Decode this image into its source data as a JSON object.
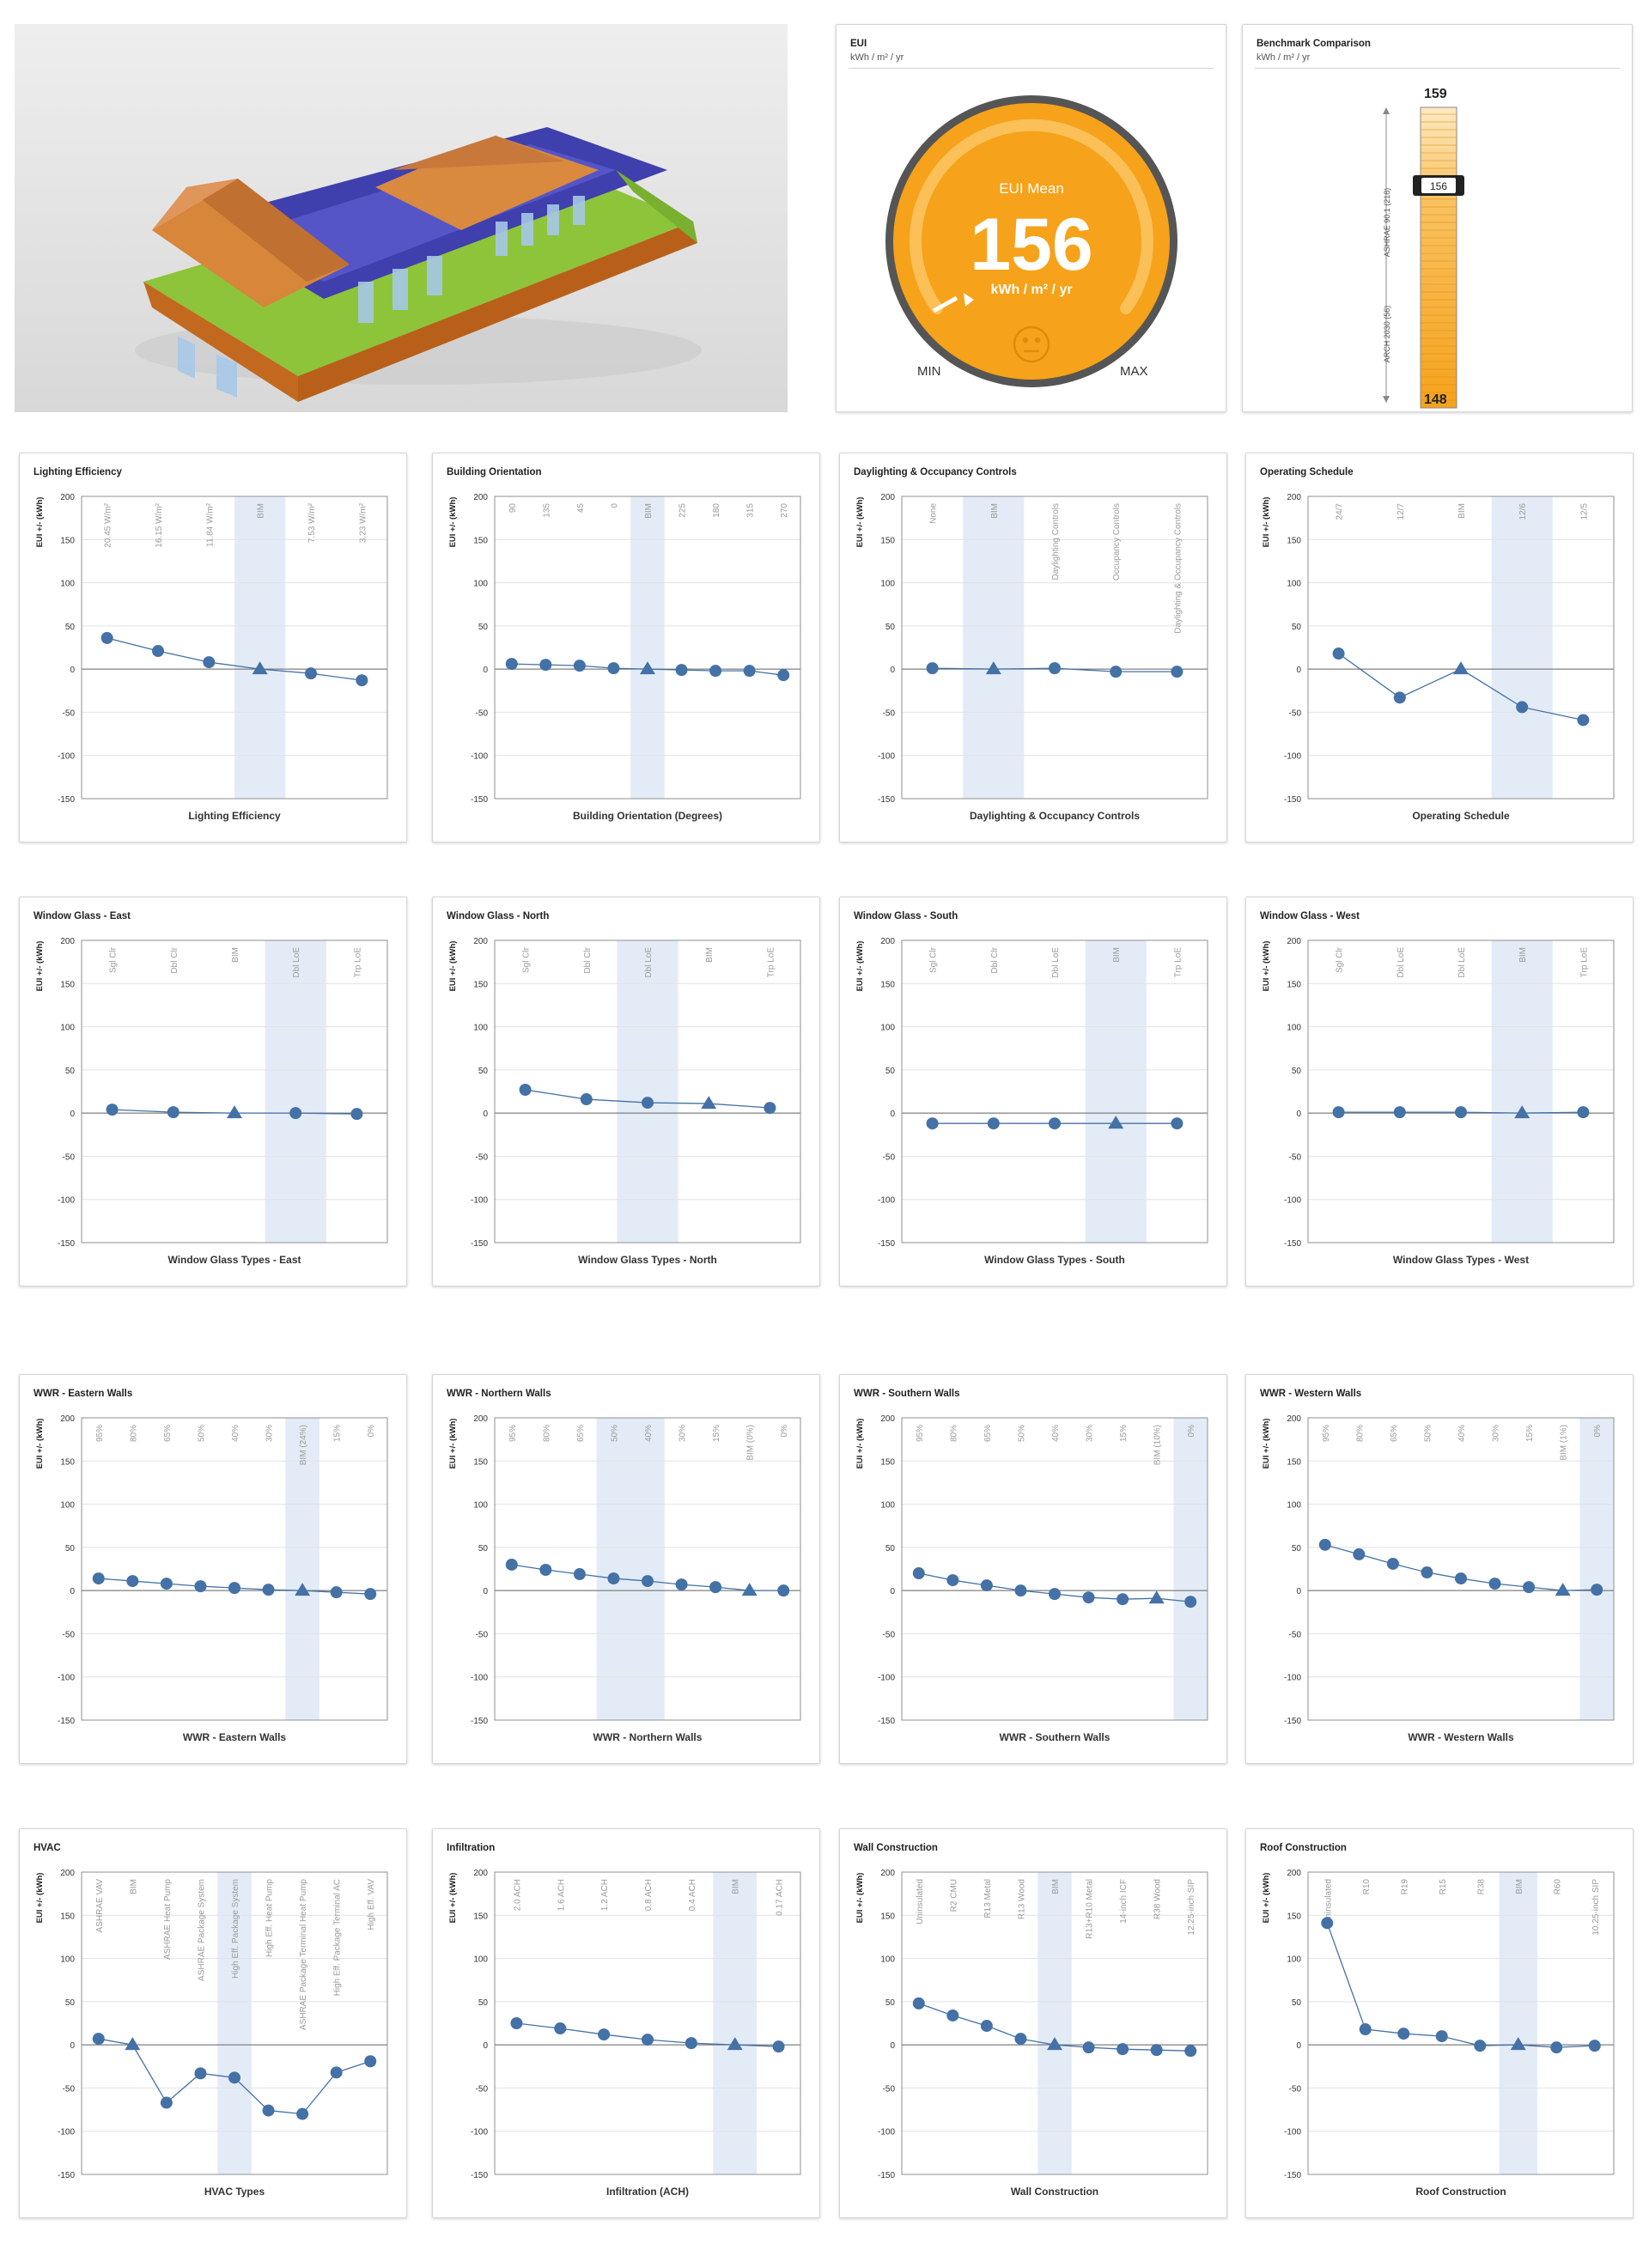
{
  "eui": {
    "title": "EUI",
    "units": "kWh / m² / yr",
    "gauge_label": "EUI Mean",
    "value": "156",
    "value_units": "kWh / m² / yr",
    "min_label": "MIN",
    "max_label": "MAX",
    "colors": {
      "accent": "#f6a21a",
      "ring": "#5f5f5f"
    }
  },
  "benchmark": {
    "title": "Benchmark Comparison",
    "units": "kWh / m² / yr",
    "top_value": "159",
    "bottom_value": "148",
    "marker_value": "156",
    "upper_label": "ASHRAE 90.1 (218)",
    "lower_label": "ARCH 2030 (56)",
    "colors": {
      "fill": "#f7a928",
      "light": "#fde7bb"
    }
  },
  "chart_data": [
    {
      "title": "Lighting Efficiency",
      "type": "line",
      "categories": [
        "20.45 W/m²",
        "16.15 W/m²",
        "11.84 W/m²",
        "BIM",
        "7.53 W/m²",
        "3.23 W/m²"
      ],
      "values": [
        36,
        21,
        8,
        0,
        -5,
        -13
      ],
      "bim": 3,
      "xlabel": "Lighting Efficiency",
      "ylabel": "EUI +/- (kWh)",
      "ylim": [
        -150,
        200
      ]
    },
    {
      "title": "Building Orientation",
      "type": "line",
      "categories": [
        "90",
        "135",
        "45",
        "0",
        "BIM",
        "225",
        "180",
        "315",
        "270"
      ],
      "values": [
        6,
        5,
        4,
        1,
        0,
        -1,
        -2,
        -2,
        -7
      ],
      "bim": 4,
      "xlabel": "Building Orientation (Degrees)",
      "ylabel": "EUI +/- (kWh)",
      "ylim": [
        -150,
        200
      ]
    },
    {
      "title": "Daylighting & Occupancy Controls",
      "type": "line",
      "categories": [
        "None",
        "BIM",
        "Daylighting Controls",
        "Occupancy Controls",
        "Daylighting & Occupancy Controls"
      ],
      "values": [
        1,
        0,
        1,
        -3,
        -3
      ],
      "bim": 1,
      "xlabel": "Daylighting & Occupancy Controls",
      "ylabel": "EUI +/- (kWh)",
      "ylim": [
        -150,
        200
      ]
    },
    {
      "title": "Operating Schedule",
      "type": "line",
      "categories": [
        "24/7",
        "12/7",
        "BIM",
        "12/6",
        "12/5"
      ],
      "values": [
        18,
        -33,
        0,
        -44,
        -59
      ],
      "bim": 2,
      "shade": 3,
      "xlabel": "Operating Schedule",
      "ylabel": "EUI +/- (kWh)",
      "ylim": [
        -150,
        200
      ]
    },
    {
      "title": "Window Glass - East",
      "type": "line",
      "categories": [
        "Sgl Clr",
        "Dbl Clr",
        "BIM",
        "Dbl LoE",
        "Trp LoE"
      ],
      "values": [
        4,
        1,
        0,
        0,
        -1
      ],
      "bim": 2,
      "shade": 3,
      "xlabel": "Window Glass Types - East",
      "ylabel": "EUI +/- (kWh)",
      "ylim": [
        -150,
        200
      ]
    },
    {
      "title": "Window Glass - North",
      "type": "line",
      "categories": [
        "Sgl Clr",
        "Dbl Clr",
        "Dbl LoE",
        "BIM",
        "Trp LoE"
      ],
      "values": [
        27,
        16,
        12,
        11,
        6
      ],
      "bim": 3,
      "shade": 2,
      "xlabel": "Window Glass Types - North",
      "ylabel": "EUI +/- (kWh)",
      "ylim": [
        -150,
        200
      ]
    },
    {
      "title": "Window Glass - South",
      "type": "line",
      "categories": [
        "Sgl Clr",
        "Dbl Clr",
        "Dbl LoE",
        "BIM",
        "Trp LoE"
      ],
      "values": [
        -12,
        -12,
        -12,
        -12,
        -12
      ],
      "bim": 3,
      "xlabel": "Window Glass Types - South",
      "ylabel": "EUI +/- (kWh)",
      "ylim": [
        -150,
        200
      ]
    },
    {
      "title": "Window Glass - West",
      "type": "line",
      "categories": [
        "Sgl Clr",
        "Dbl LoE",
        "Dbl LoE",
        "BIM",
        "Trp LoE"
      ],
      "values": [
        1,
        1,
        1,
        0,
        1
      ],
      "bim": 3,
      "xlabel": "Window Glass Types - West",
      "ylabel": "EUI +/- (kWh)",
      "ylim": [
        -150,
        200
      ]
    },
    {
      "title": "WWR - Eastern Walls",
      "type": "line",
      "categories": [
        "95%",
        "80%",
        "65%",
        "50%",
        "40%",
        "30%",
        "BIM (24%)",
        "15%",
        "0%"
      ],
      "values": [
        14,
        11,
        8,
        5,
        3,
        1,
        0,
        -2,
        -4
      ],
      "bim": 6,
      "xlabel": "WWR - Eastern Walls",
      "ylabel": "EUI +/- (kWh)",
      "ylim": [
        -150,
        200
      ]
    },
    {
      "title": "WWR - Northern Walls",
      "type": "line",
      "categories": [
        "95%",
        "80%",
        "65%",
        "50%",
        "40%",
        "30%",
        "15%",
        "BIM (0%)",
        "0%"
      ],
      "values": [
        30,
        24,
        19,
        14,
        11,
        7,
        4,
        0,
        0
      ],
      "bim": 7,
      "shade": [
        3,
        4
      ],
      "xlabel": "WWR - Northern Walls",
      "ylabel": "EUI +/- (kWh)",
      "ylim": [
        -150,
        200
      ]
    },
    {
      "title": "WWR - Southern Walls",
      "type": "line",
      "categories": [
        "95%",
        "80%",
        "65%",
        "50%",
        "40%",
        "30%",
        "15%",
        "BIM (10%)",
        "0%"
      ],
      "values": [
        20,
        12,
        6,
        0,
        -4,
        -8,
        -10,
        -9,
        -13
      ],
      "bim": 7,
      "shade": 8,
      "xlabel": "WWR - Southern Walls",
      "ylabel": "EUI +/- (kWh)",
      "ylim": [
        -150,
        200
      ]
    },
    {
      "title": "WWR - Western Walls",
      "type": "line",
      "categories": [
        "95%",
        "80%",
        "65%",
        "50%",
        "40%",
        "30%",
        "15%",
        "BIM (1%)",
        "0%"
      ],
      "values": [
        53,
        42,
        31,
        21,
        14,
        8,
        4,
        0,
        1
      ],
      "bim": 7,
      "shade": 8,
      "xlabel": "WWR - Western Walls",
      "ylabel": "EUI +/- (kWh)",
      "ylim": [
        -150,
        200
      ]
    },
    {
      "title": "HVAC",
      "type": "line",
      "categories": [
        "ASHRAE VAV",
        "BIM",
        "ASHRAE Heat Pump",
        "ASHRAE Package System",
        "High Eff. Package System",
        "High Eff. Heat Pump",
        "ASHRAE Package Terminal Heat Pump",
        "High Eff. Package Terminal AC",
        "High Eff. VAV"
      ],
      "values": [
        7,
        0,
        -67,
        -33,
        -38,
        -76,
        -80,
        -32,
        -19
      ],
      "bim": 1,
      "shade": 4,
      "xlabel": "HVAC Types",
      "ylabel": "EUI +/- (kWh)",
      "ylim": [
        -150,
        200
      ]
    },
    {
      "title": "Infiltration",
      "type": "line",
      "categories": [
        "2.0 ACH",
        "1.6 ACH",
        "1.2 ACH",
        "0.8 ACH",
        "0.4 ACH",
        "BIM",
        "0.17 ACH"
      ],
      "values": [
        25,
        19,
        12,
        6,
        2,
        0,
        -2
      ],
      "bim": 5,
      "xlabel": "Infiltration (ACH)",
      "ylabel": "EUI +/- (kWh)",
      "ylim": [
        -150,
        200
      ]
    },
    {
      "title": "Wall Construction",
      "type": "line",
      "categories": [
        "Uninsulated",
        "R2 CMU",
        "R13 Metal",
        "R13 Wood",
        "BIM",
        "R13+R10 Metal",
        "14-inch ICF",
        "R38 Wood",
        "12.25-inch SIP"
      ],
      "values": [
        48,
        34,
        22,
        7,
        0,
        -3,
        -5,
        -6,
        -7
      ],
      "bim": 4,
      "xlabel": "Wall Construction",
      "ylabel": "EUI +/- (kWh)",
      "ylim": [
        -150,
        200
      ]
    },
    {
      "title": "Roof Construction",
      "type": "line",
      "categories": [
        "Uninsulated",
        "R10",
        "R19",
        "R15",
        "R38",
        "BIM",
        "R60",
        "10.25-inch SIP"
      ],
      "values": [
        141,
        18,
        13,
        10,
        -1,
        0,
        -3,
        -1
      ],
      "bim": 5,
      "xlabel": "Roof Construction",
      "ylabel": "EUI +/- (kWh)",
      "ylim": [
        -150,
        200
      ]
    }
  ],
  "chart_style": {
    "point_color": "#4471a6",
    "shade_color": "#e3ecf6",
    "grid_color": "#8f8f8f"
  }
}
